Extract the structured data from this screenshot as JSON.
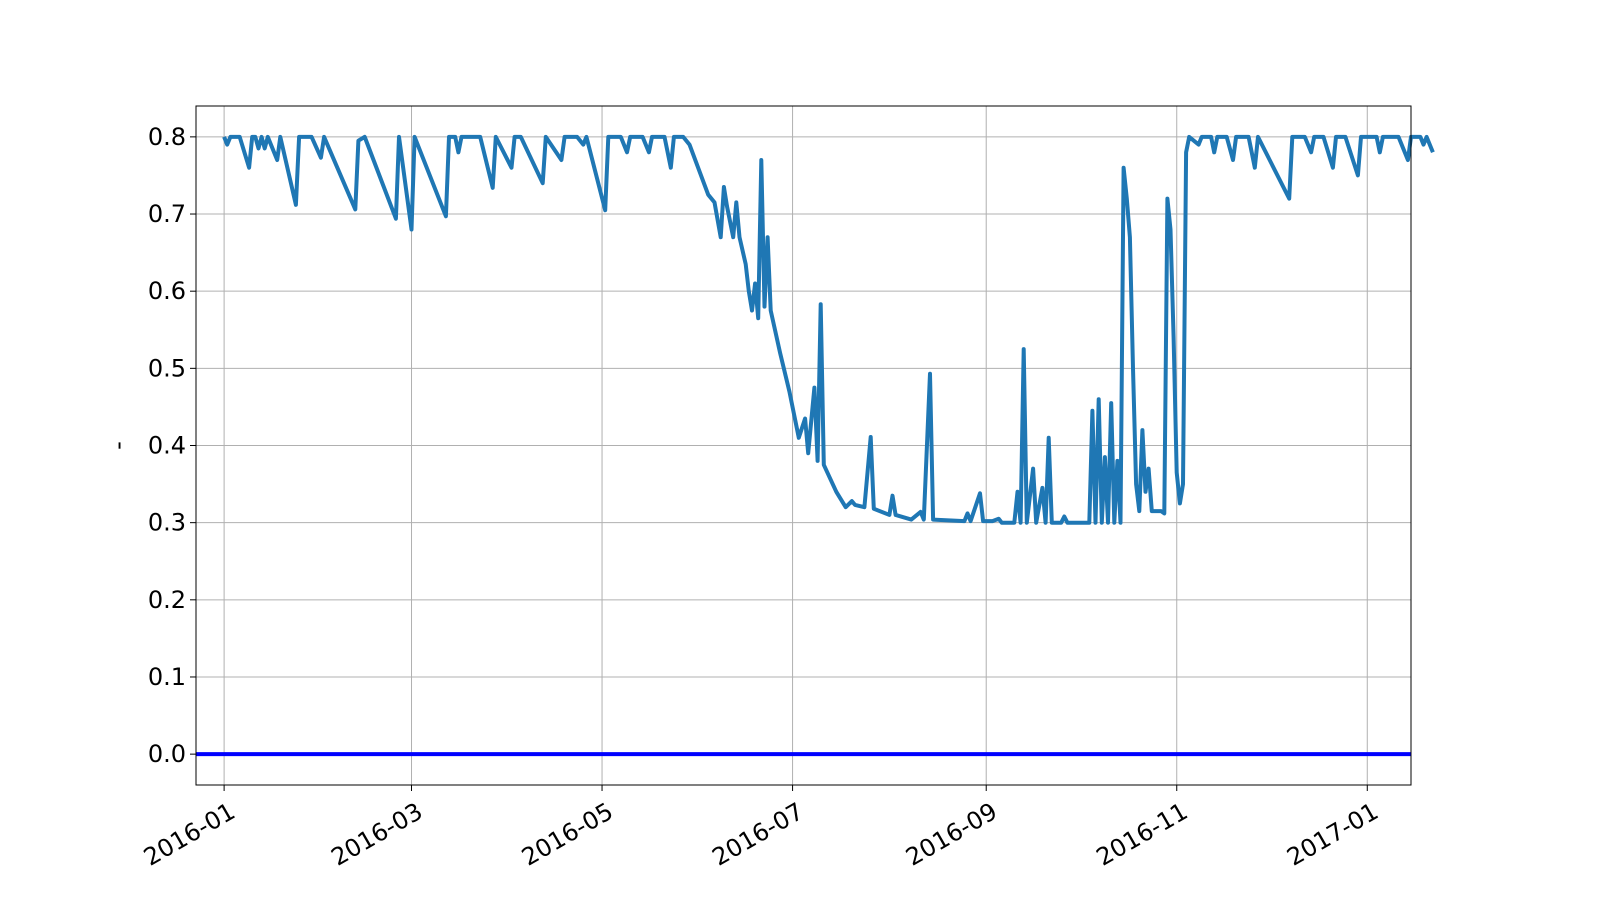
{
  "chart_data": {
    "type": "line",
    "title": "",
    "xlabel": "",
    "ylabel": "-",
    "x_range": [
      "2015-12-23",
      "2017-01-15"
    ],
    "ylim": [
      -0.04,
      0.84
    ],
    "grid": true,
    "legend": "none",
    "x_ticks": [
      {
        "date": "2016-01-01",
        "label": "2016-01"
      },
      {
        "date": "2016-03-01",
        "label": "2016-03"
      },
      {
        "date": "2016-05-01",
        "label": "2016-05"
      },
      {
        "date": "2016-07-01",
        "label": "2016-07"
      },
      {
        "date": "2016-09-01",
        "label": "2016-09"
      },
      {
        "date": "2016-11-01",
        "label": "2016-11"
      },
      {
        "date": "2017-01-01",
        "label": "2017-01"
      }
    ],
    "y_ticks": [
      {
        "value": 0.0,
        "label": "0.0"
      },
      {
        "value": 0.1,
        "label": "0.1"
      },
      {
        "value": 0.2,
        "label": "0.2"
      },
      {
        "value": 0.3,
        "label": "0.3"
      },
      {
        "value": 0.4,
        "label": "0.4"
      },
      {
        "value": 0.5,
        "label": "0.5"
      },
      {
        "value": 0.6,
        "label": "0.6"
      },
      {
        "value": 0.7,
        "label": "0.7"
      },
      {
        "value": 0.8,
        "label": "0.8"
      }
    ],
    "baseline": {
      "value": 0.0,
      "color": "#0000ff"
    },
    "series": [
      {
        "color": "#1f77b4",
        "points": [
          [
            "2016-01-01",
            0.8
          ],
          [
            "2016-01-02",
            0.79
          ],
          [
            "2016-01-03",
            0.8
          ],
          [
            "2016-01-06",
            0.8
          ],
          [
            "2016-01-09",
            0.76
          ],
          [
            "2016-01-10",
            0.8
          ],
          [
            "2016-01-11",
            0.8
          ],
          [
            "2016-01-12",
            0.785
          ],
          [
            "2016-01-13",
            0.8
          ],
          [
            "2016-01-14",
            0.785
          ],
          [
            "2016-01-15",
            0.8
          ],
          [
            "2016-01-18",
            0.77
          ],
          [
            "2016-01-19",
            0.8
          ],
          [
            "2016-01-24",
            0.712
          ],
          [
            "2016-01-25",
            0.8
          ],
          [
            "2016-01-29",
            0.8
          ],
          [
            "2016-02-01",
            0.773
          ],
          [
            "2016-02-02",
            0.8
          ],
          [
            "2016-02-12",
            0.706
          ],
          [
            "2016-02-13",
            0.795
          ],
          [
            "2016-02-15",
            0.8
          ],
          [
            "2016-02-25",
            0.694
          ],
          [
            "2016-02-26",
            0.8
          ],
          [
            "2016-03-01",
            0.68
          ],
          [
            "2016-03-02",
            0.8
          ],
          [
            "2016-03-12",
            0.697
          ],
          [
            "2016-03-13",
            0.8
          ],
          [
            "2016-03-15",
            0.8
          ],
          [
            "2016-03-16",
            0.78
          ],
          [
            "2016-03-17",
            0.8
          ],
          [
            "2016-03-23",
            0.8
          ],
          [
            "2016-03-27",
            0.734
          ],
          [
            "2016-03-28",
            0.8
          ],
          [
            "2016-04-02",
            0.76
          ],
          [
            "2016-04-03",
            0.8
          ],
          [
            "2016-04-05",
            0.8
          ],
          [
            "2016-04-12",
            0.74
          ],
          [
            "2016-04-13",
            0.8
          ],
          [
            "2016-04-18",
            0.77
          ],
          [
            "2016-04-19",
            0.8
          ],
          [
            "2016-04-23",
            0.8
          ],
          [
            "2016-04-25",
            0.79
          ],
          [
            "2016-04-26",
            0.8
          ],
          [
            "2016-05-02",
            0.705
          ],
          [
            "2016-05-03",
            0.8
          ],
          [
            "2016-05-07",
            0.8
          ],
          [
            "2016-05-09",
            0.78
          ],
          [
            "2016-05-10",
            0.8
          ],
          [
            "2016-05-14",
            0.8
          ],
          [
            "2016-05-16",
            0.78
          ],
          [
            "2016-05-17",
            0.8
          ],
          [
            "2016-05-21",
            0.8
          ],
          [
            "2016-05-23",
            0.76
          ],
          [
            "2016-05-24",
            0.8
          ],
          [
            "2016-05-27",
            0.8
          ],
          [
            "2016-05-29",
            0.79
          ],
          [
            "2016-06-04",
            0.725
          ],
          [
            "2016-06-06",
            0.715
          ],
          [
            "2016-06-08",
            0.67
          ],
          [
            "2016-06-09",
            0.735
          ],
          [
            "2016-06-10",
            0.71
          ],
          [
            "2016-06-12",
            0.67
          ],
          [
            "2016-06-13",
            0.715
          ],
          [
            "2016-06-14",
            0.67
          ],
          [
            "2016-06-16",
            0.635
          ],
          [
            "2016-06-17",
            0.6
          ],
          [
            "2016-06-18",
            0.575
          ],
          [
            "2016-06-19",
            0.61
          ],
          [
            "2016-06-20",
            0.565
          ],
          [
            "2016-06-21",
            0.77
          ],
          [
            "2016-06-22",
            0.58
          ],
          [
            "2016-06-23",
            0.67
          ],
          [
            "2016-06-24",
            0.575
          ],
          [
            "2016-06-27",
            0.52
          ],
          [
            "2016-06-30",
            0.47
          ],
          [
            "2016-07-03",
            0.41
          ],
          [
            "2016-07-05",
            0.435
          ],
          [
            "2016-07-06",
            0.39
          ],
          [
            "2016-07-08",
            0.475
          ],
          [
            "2016-07-09",
            0.38
          ],
          [
            "2016-07-10",
            0.583
          ],
          [
            "2016-07-11",
            0.375
          ],
          [
            "2016-07-15",
            0.34
          ],
          [
            "2016-07-18",
            0.32
          ],
          [
            "2016-07-20",
            0.328
          ],
          [
            "2016-07-21",
            0.323
          ],
          [
            "2016-07-24",
            0.32
          ],
          [
            "2016-07-26",
            0.411
          ],
          [
            "2016-07-27",
            0.318
          ],
          [
            "2016-08-01",
            0.31
          ],
          [
            "2016-08-02",
            0.335
          ],
          [
            "2016-08-03",
            0.31
          ],
          [
            "2016-08-08",
            0.304
          ],
          [
            "2016-08-11",
            0.314
          ],
          [
            "2016-08-12",
            0.304
          ],
          [
            "2016-08-14",
            0.493
          ],
          [
            "2016-08-15",
            0.304
          ],
          [
            "2016-08-25",
            0.302
          ],
          [
            "2016-08-26",
            0.312
          ],
          [
            "2016-08-27",
            0.302
          ],
          [
            "2016-08-30",
            0.338
          ],
          [
            "2016-08-31",
            0.302
          ],
          [
            "2016-09-03",
            0.302
          ],
          [
            "2016-09-05",
            0.305
          ],
          [
            "2016-09-06",
            0.3
          ],
          [
            "2016-09-10",
            0.3
          ],
          [
            "2016-09-11",
            0.34
          ],
          [
            "2016-09-12",
            0.3
          ],
          [
            "2016-09-13",
            0.525
          ],
          [
            "2016-09-14",
            0.3
          ],
          [
            "2016-09-16",
            0.37
          ],
          [
            "2016-09-17",
            0.3
          ],
          [
            "2016-09-19",
            0.345
          ],
          [
            "2016-09-20",
            0.3
          ],
          [
            "2016-09-21",
            0.41
          ],
          [
            "2016-09-22",
            0.3
          ],
          [
            "2016-09-25",
            0.3
          ],
          [
            "2016-09-26",
            0.308
          ],
          [
            "2016-09-27",
            0.3
          ],
          [
            "2016-10-04",
            0.3
          ],
          [
            "2016-10-05",
            0.445
          ],
          [
            "2016-10-06",
            0.3
          ],
          [
            "2016-10-07",
            0.46
          ],
          [
            "2016-10-08",
            0.3
          ],
          [
            "2016-10-09",
            0.385
          ],
          [
            "2016-10-10",
            0.3
          ],
          [
            "2016-10-11",
            0.455
          ],
          [
            "2016-10-12",
            0.3
          ],
          [
            "2016-10-13",
            0.38
          ],
          [
            "2016-10-14",
            0.3
          ],
          [
            "2016-10-15",
            0.76
          ],
          [
            "2016-10-16",
            0.72
          ],
          [
            "2016-10-17",
            0.67
          ],
          [
            "2016-10-18",
            0.5
          ],
          [
            "2016-10-19",
            0.35
          ],
          [
            "2016-10-20",
            0.315
          ],
          [
            "2016-10-21",
            0.42
          ],
          [
            "2016-10-22",
            0.34
          ],
          [
            "2016-10-23",
            0.37
          ],
          [
            "2016-10-24",
            0.315
          ],
          [
            "2016-10-27",
            0.315
          ],
          [
            "2016-10-28",
            0.312
          ],
          [
            "2016-10-29",
            0.72
          ],
          [
            "2016-10-30",
            0.68
          ],
          [
            "2016-10-31",
            0.54
          ],
          [
            "2016-11-01",
            0.365
          ],
          [
            "2016-11-02",
            0.325
          ],
          [
            "2016-11-03",
            0.35
          ],
          [
            "2016-11-04",
            0.78
          ],
          [
            "2016-11-05",
            0.8
          ],
          [
            "2016-11-08",
            0.79
          ],
          [
            "2016-11-09",
            0.8
          ],
          [
            "2016-11-12",
            0.8
          ],
          [
            "2016-11-13",
            0.78
          ],
          [
            "2016-11-14",
            0.8
          ],
          [
            "2016-11-17",
            0.8
          ],
          [
            "2016-11-19",
            0.77
          ],
          [
            "2016-11-20",
            0.8
          ],
          [
            "2016-11-24",
            0.8
          ],
          [
            "2016-11-26",
            0.76
          ],
          [
            "2016-11-27",
            0.8
          ],
          [
            "2016-12-07",
            0.72
          ],
          [
            "2016-12-08",
            0.8
          ],
          [
            "2016-12-12",
            0.8
          ],
          [
            "2016-12-14",
            0.78
          ],
          [
            "2016-12-15",
            0.8
          ],
          [
            "2016-12-18",
            0.8
          ],
          [
            "2016-12-21",
            0.76
          ],
          [
            "2016-12-22",
            0.8
          ],
          [
            "2016-12-25",
            0.8
          ],
          [
            "2016-12-29",
            0.75
          ],
          [
            "2016-12-30",
            0.8
          ],
          [
            "2017-01-04",
            0.8
          ],
          [
            "2017-01-05",
            0.78
          ],
          [
            "2017-01-06",
            0.8
          ],
          [
            "2017-01-11",
            0.8
          ],
          [
            "2017-01-14",
            0.77
          ],
          [
            "2017-01-15",
            0.8
          ],
          [
            "2017-01-18",
            0.8
          ],
          [
            "2017-01-19",
            0.79
          ],
          [
            "2017-01-20",
            0.8
          ],
          [
            "2017-01-22",
            0.78
          ]
        ]
      }
    ]
  }
}
